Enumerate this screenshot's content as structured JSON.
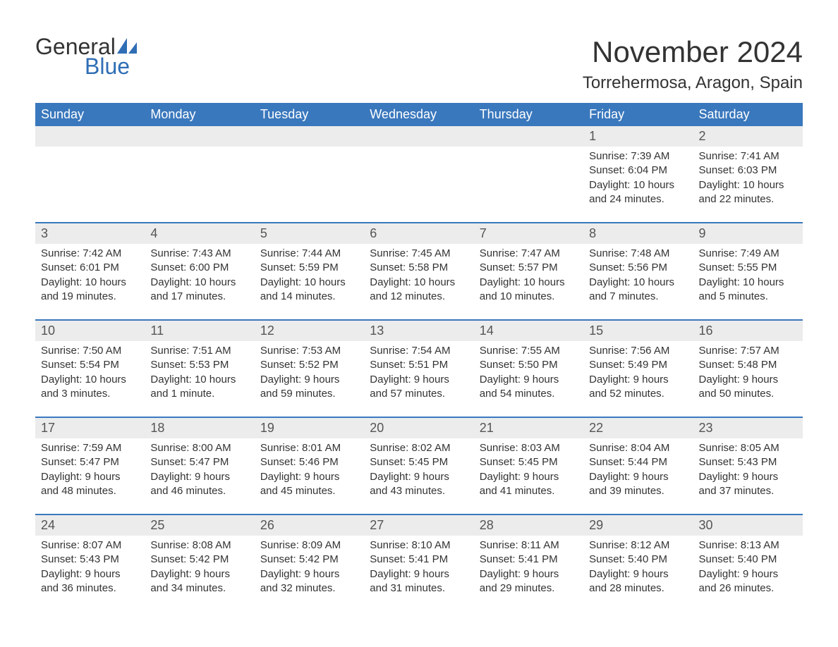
{
  "logo": {
    "text1": "General",
    "text2": "Blue"
  },
  "title": "November 2024",
  "location": "Torrehermosa, Aragon, Spain",
  "colors": {
    "header_bg": "#3a78bd",
    "header_fg": "#ffffff",
    "daynum_bg": "#ececec",
    "daynum_fg": "#555555",
    "text": "#333333",
    "accent": "#2f6eb5",
    "row_divider": "#3a78bd",
    "page_bg": "#ffffff"
  },
  "day_headers": [
    "Sunday",
    "Monday",
    "Tuesday",
    "Wednesday",
    "Thursday",
    "Friday",
    "Saturday"
  ],
  "weeks": [
    [
      null,
      null,
      null,
      null,
      null,
      {
        "n": "1",
        "sunrise": "Sunrise: 7:39 AM",
        "sunset": "Sunset: 6:04 PM",
        "dl1": "Daylight: 10 hours",
        "dl2": "and 24 minutes."
      },
      {
        "n": "2",
        "sunrise": "Sunrise: 7:41 AM",
        "sunset": "Sunset: 6:03 PM",
        "dl1": "Daylight: 10 hours",
        "dl2": "and 22 minutes."
      }
    ],
    [
      {
        "n": "3",
        "sunrise": "Sunrise: 7:42 AM",
        "sunset": "Sunset: 6:01 PM",
        "dl1": "Daylight: 10 hours",
        "dl2": "and 19 minutes."
      },
      {
        "n": "4",
        "sunrise": "Sunrise: 7:43 AM",
        "sunset": "Sunset: 6:00 PM",
        "dl1": "Daylight: 10 hours",
        "dl2": "and 17 minutes."
      },
      {
        "n": "5",
        "sunrise": "Sunrise: 7:44 AM",
        "sunset": "Sunset: 5:59 PM",
        "dl1": "Daylight: 10 hours",
        "dl2": "and 14 minutes."
      },
      {
        "n": "6",
        "sunrise": "Sunrise: 7:45 AM",
        "sunset": "Sunset: 5:58 PM",
        "dl1": "Daylight: 10 hours",
        "dl2": "and 12 minutes."
      },
      {
        "n": "7",
        "sunrise": "Sunrise: 7:47 AM",
        "sunset": "Sunset: 5:57 PM",
        "dl1": "Daylight: 10 hours",
        "dl2": "and 10 minutes."
      },
      {
        "n": "8",
        "sunrise": "Sunrise: 7:48 AM",
        "sunset": "Sunset: 5:56 PM",
        "dl1": "Daylight: 10 hours",
        "dl2": "and 7 minutes."
      },
      {
        "n": "9",
        "sunrise": "Sunrise: 7:49 AM",
        "sunset": "Sunset: 5:55 PM",
        "dl1": "Daylight: 10 hours",
        "dl2": "and 5 minutes."
      }
    ],
    [
      {
        "n": "10",
        "sunrise": "Sunrise: 7:50 AM",
        "sunset": "Sunset: 5:54 PM",
        "dl1": "Daylight: 10 hours",
        "dl2": "and 3 minutes."
      },
      {
        "n": "11",
        "sunrise": "Sunrise: 7:51 AM",
        "sunset": "Sunset: 5:53 PM",
        "dl1": "Daylight: 10 hours",
        "dl2": "and 1 minute."
      },
      {
        "n": "12",
        "sunrise": "Sunrise: 7:53 AM",
        "sunset": "Sunset: 5:52 PM",
        "dl1": "Daylight: 9 hours",
        "dl2": "and 59 minutes."
      },
      {
        "n": "13",
        "sunrise": "Sunrise: 7:54 AM",
        "sunset": "Sunset: 5:51 PM",
        "dl1": "Daylight: 9 hours",
        "dl2": "and 57 minutes."
      },
      {
        "n": "14",
        "sunrise": "Sunrise: 7:55 AM",
        "sunset": "Sunset: 5:50 PM",
        "dl1": "Daylight: 9 hours",
        "dl2": "and 54 minutes."
      },
      {
        "n": "15",
        "sunrise": "Sunrise: 7:56 AM",
        "sunset": "Sunset: 5:49 PM",
        "dl1": "Daylight: 9 hours",
        "dl2": "and 52 minutes."
      },
      {
        "n": "16",
        "sunrise": "Sunrise: 7:57 AM",
        "sunset": "Sunset: 5:48 PM",
        "dl1": "Daylight: 9 hours",
        "dl2": "and 50 minutes."
      }
    ],
    [
      {
        "n": "17",
        "sunrise": "Sunrise: 7:59 AM",
        "sunset": "Sunset: 5:47 PM",
        "dl1": "Daylight: 9 hours",
        "dl2": "and 48 minutes."
      },
      {
        "n": "18",
        "sunrise": "Sunrise: 8:00 AM",
        "sunset": "Sunset: 5:47 PM",
        "dl1": "Daylight: 9 hours",
        "dl2": "and 46 minutes."
      },
      {
        "n": "19",
        "sunrise": "Sunrise: 8:01 AM",
        "sunset": "Sunset: 5:46 PM",
        "dl1": "Daylight: 9 hours",
        "dl2": "and 45 minutes."
      },
      {
        "n": "20",
        "sunrise": "Sunrise: 8:02 AM",
        "sunset": "Sunset: 5:45 PM",
        "dl1": "Daylight: 9 hours",
        "dl2": "and 43 minutes."
      },
      {
        "n": "21",
        "sunrise": "Sunrise: 8:03 AM",
        "sunset": "Sunset: 5:45 PM",
        "dl1": "Daylight: 9 hours",
        "dl2": "and 41 minutes."
      },
      {
        "n": "22",
        "sunrise": "Sunrise: 8:04 AM",
        "sunset": "Sunset: 5:44 PM",
        "dl1": "Daylight: 9 hours",
        "dl2": "and 39 minutes."
      },
      {
        "n": "23",
        "sunrise": "Sunrise: 8:05 AM",
        "sunset": "Sunset: 5:43 PM",
        "dl1": "Daylight: 9 hours",
        "dl2": "and 37 minutes."
      }
    ],
    [
      {
        "n": "24",
        "sunrise": "Sunrise: 8:07 AM",
        "sunset": "Sunset: 5:43 PM",
        "dl1": "Daylight: 9 hours",
        "dl2": "and 36 minutes."
      },
      {
        "n": "25",
        "sunrise": "Sunrise: 8:08 AM",
        "sunset": "Sunset: 5:42 PM",
        "dl1": "Daylight: 9 hours",
        "dl2": "and 34 minutes."
      },
      {
        "n": "26",
        "sunrise": "Sunrise: 8:09 AM",
        "sunset": "Sunset: 5:42 PM",
        "dl1": "Daylight: 9 hours",
        "dl2": "and 32 minutes."
      },
      {
        "n": "27",
        "sunrise": "Sunrise: 8:10 AM",
        "sunset": "Sunset: 5:41 PM",
        "dl1": "Daylight: 9 hours",
        "dl2": "and 31 minutes."
      },
      {
        "n": "28",
        "sunrise": "Sunrise: 8:11 AM",
        "sunset": "Sunset: 5:41 PM",
        "dl1": "Daylight: 9 hours",
        "dl2": "and 29 minutes."
      },
      {
        "n": "29",
        "sunrise": "Sunrise: 8:12 AM",
        "sunset": "Sunset: 5:40 PM",
        "dl1": "Daylight: 9 hours",
        "dl2": "and 28 minutes."
      },
      {
        "n": "30",
        "sunrise": "Sunrise: 8:13 AM",
        "sunset": "Sunset: 5:40 PM",
        "dl1": "Daylight: 9 hours",
        "dl2": "and 26 minutes."
      }
    ]
  ]
}
